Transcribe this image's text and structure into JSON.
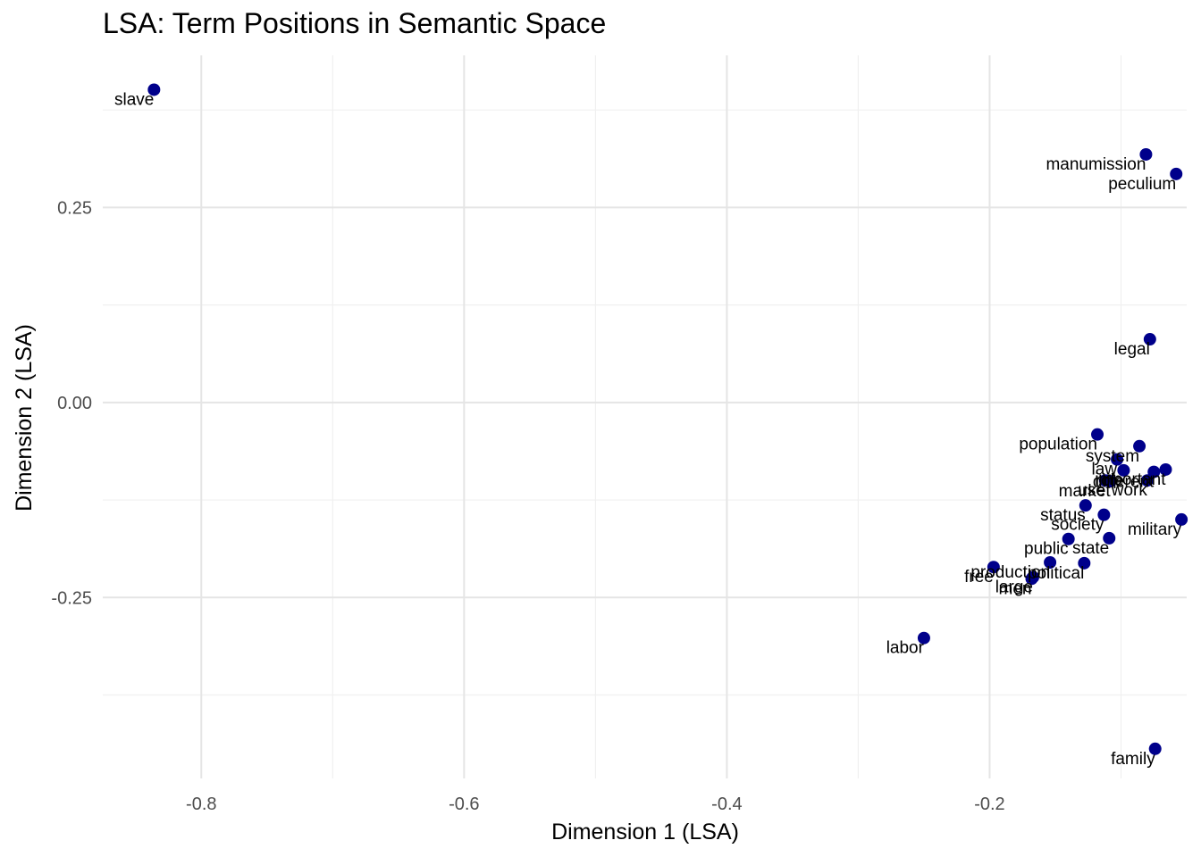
{
  "chart_data": {
    "type": "scatter",
    "title": "LSA: Term Positions in Semantic Space",
    "xlabel": "Dimension 1 (LSA)",
    "ylabel": "Dimension 2 (LSA)",
    "xlim": [
      -0.875,
      -0.05
    ],
    "ylim": [
      -0.482,
      0.445
    ],
    "x_ticks": [
      -0.8,
      -0.6,
      -0.4,
      -0.2
    ],
    "x_tick_labels": [
      "-0.8",
      "-0.6",
      "-0.4",
      "-0.2"
    ],
    "y_ticks": [
      0.25,
      0.0,
      -0.25
    ],
    "y_tick_labels": [
      "0.25",
      "0.00",
      "-0.25"
    ],
    "grid": true,
    "legend": "none",
    "point_color": "#00008B",
    "points": [
      {
        "label": "slave",
        "x": -0.836,
        "y": 0.401
      },
      {
        "label": "manumission",
        "x": -0.081,
        "y": 0.318
      },
      {
        "label": "peculium",
        "x": -0.058,
        "y": 0.293
      },
      {
        "label": "legal",
        "x": -0.078,
        "y": 0.081
      },
      {
        "label": "population",
        "x": -0.118,
        "y": -0.041
      },
      {
        "label": "system",
        "x": -0.086,
        "y": -0.056
      },
      {
        "label": "law",
        "x": -0.103,
        "y": -0.073
      },
      {
        "label": "important",
        "x": -0.066,
        "y": -0.086
      },
      {
        "label": "role",
        "x": -0.098,
        "y": -0.087
      },
      {
        "label": "different",
        "x": -0.075,
        "y": -0.089
      },
      {
        "label": "work",
        "x": -0.08,
        "y": -0.1
      },
      {
        "label": "use",
        "x": -0.112,
        "y": -0.1
      },
      {
        "label": "market",
        "x": -0.108,
        "y": -0.101
      },
      {
        "label": "status",
        "x": -0.127,
        "y": -0.132
      },
      {
        "label": "society",
        "x": -0.113,
        "y": -0.144
      },
      {
        "label": "military",
        "x": -0.054,
        "y": -0.15
      },
      {
        "label": "state",
        "x": -0.109,
        "y": -0.174
      },
      {
        "label": "public",
        "x": -0.14,
        "y": -0.175
      },
      {
        "label": "production",
        "x": -0.154,
        "y": -0.205
      },
      {
        "label": "political",
        "x": -0.128,
        "y": -0.206
      },
      {
        "label": "free",
        "x": -0.197,
        "y": -0.211
      },
      {
        "label": "large",
        "x": -0.167,
        "y": -0.224
      },
      {
        "label": "men",
        "x": -0.168,
        "y": -0.226
      },
      {
        "label": "labor",
        "x": -0.25,
        "y": -0.302
      },
      {
        "label": "family",
        "x": -0.074,
        "y": -0.444
      }
    ]
  }
}
